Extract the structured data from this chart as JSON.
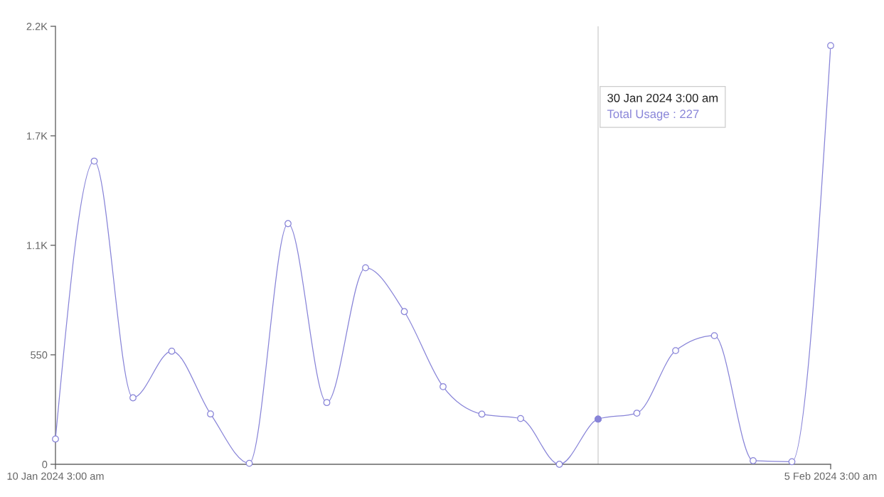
{
  "chart_data": {
    "type": "line",
    "categories": [
      "10 Jan 2024 3:00 am",
      null,
      null,
      null,
      null,
      null,
      null,
      null,
      null,
      null,
      null,
      null,
      null,
      null,
      null,
      null,
      null,
      null,
      null,
      null,
      "5 Feb 2024 3:00 am"
    ],
    "series": [
      {
        "color": "#8884d8",
        "values": [
          127,
          1523,
          334,
          568,
          253,
          5,
          1209,
          310,
          987,
          767,
          390,
          252,
          230,
          0,
          227,
          257,
          571,
          646,
          18,
          13,
          2103
        ]
      }
    ],
    "ylim": [
      0,
      2200
    ],
    "yticks": [
      0,
      550,
      {
        "value": 1100,
        "label": "1.1K"
      },
      {
        "value": 1650,
        "label": "1.7K"
      },
      {
        "value": 2200,
        "label": "2.2K"
      }
    ],
    "marker": "circle",
    "line_style": "solid",
    "annotations": [
      "30 Jan 2024 3:00 am",
      "Total Usage : 227"
    ]
  }
}
